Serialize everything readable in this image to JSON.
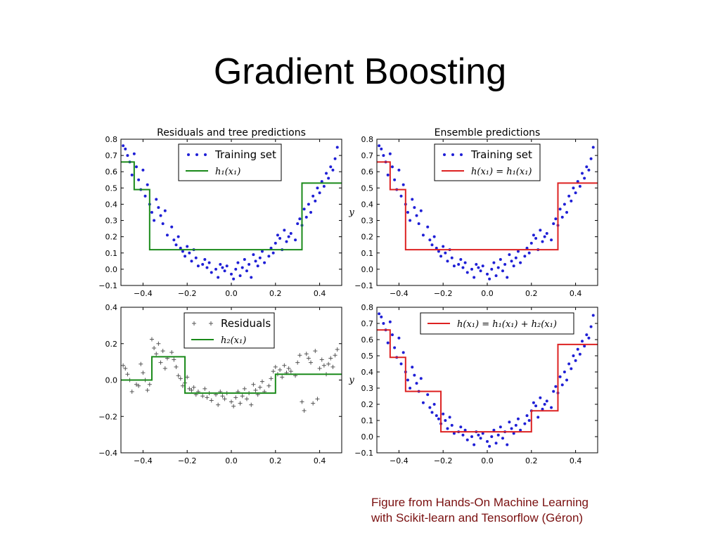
{
  "slide": {
    "title": "Gradient Boosting",
    "caption_line1": "Figure from Hands-On Machine Learning",
    "caption_line2": "with Scikit-learn and Tensorflow (Géron)"
  },
  "colors": {
    "training_points": "#1f1fd6",
    "residual_markers": "#555555",
    "tree_prediction": "#1a8a1a",
    "ensemble_prediction": "#dd2222"
  },
  "chart_data": [
    {
      "type": "scatter",
      "title": "Residuals and tree predictions",
      "xlabel": "",
      "ylabel": "",
      "xlim": [
        -0.5,
        0.5
      ],
      "ylim": [
        -0.1,
        0.8
      ],
      "xticks": [
        "−0.4",
        "−0.2",
        "0.0",
        "0.2",
        "0.4"
      ],
      "yticks": [
        "−0.1",
        "0.0",
        "0.1",
        "0.2",
        "0.3",
        "0.4",
        "0.5",
        "0.6",
        "0.7",
        "0.8"
      ],
      "legend_position": "top-center",
      "series": [
        {
          "name": "Training set",
          "kind": "points",
          "source": "training"
        },
        {
          "name": "h₁(x₁)",
          "kind": "step",
          "color": "#1a8a1a",
          "x": [
            -0.5,
            -0.44,
            -0.44,
            -0.37,
            -0.37,
            0.32,
            0.32,
            0.5
          ],
          "y": [
            0.66,
            0.66,
            0.49,
            0.49,
            0.12,
            0.12,
            0.53,
            0.53
          ]
        }
      ]
    },
    {
      "type": "scatter",
      "title": "Ensemble predictions",
      "xlabel": "",
      "ylabel": "y",
      "xlim": [
        -0.5,
        0.5
      ],
      "ylim": [
        -0.1,
        0.8
      ],
      "xticks": [
        "−0.4",
        "−0.2",
        "0.0",
        "0.2",
        "0.4"
      ],
      "yticks": [
        "−0.1",
        "0.0",
        "0.1",
        "0.2",
        "0.3",
        "0.4",
        "0.5",
        "0.6",
        "0.7",
        "0.8"
      ],
      "legend_position": "top-center",
      "series": [
        {
          "name": "Training set",
          "kind": "points",
          "source": "training"
        },
        {
          "name": "h(x₁) = h₁(x₁)",
          "kind": "step",
          "color": "#dd2222",
          "x": [
            -0.5,
            -0.44,
            -0.44,
            -0.37,
            -0.37,
            0.32,
            0.32,
            0.5
          ],
          "y": [
            0.66,
            0.66,
            0.49,
            0.49,
            0.12,
            0.12,
            0.53,
            0.53
          ]
        }
      ]
    },
    {
      "type": "scatter",
      "title": "",
      "xlabel": "",
      "ylabel": "",
      "xlim": [
        -0.5,
        0.5
      ],
      "ylim": [
        -0.5,
        0.5
      ],
      "xticks": [
        "−0.4",
        "−0.2",
        "0.0",
        "0.2",
        "0.4"
      ],
      "yticks": [
        "−0.4",
        "−0.2",
        "0.0",
        "0.2",
        "0.4"
      ],
      "legend_position": "top-center",
      "series": [
        {
          "name": "Residuals",
          "kind": "plus",
          "source": "residuals"
        },
        {
          "name": "h₂(x₁)",
          "kind": "step",
          "color": "#1a8a1a",
          "x": [
            -0.5,
            -0.36,
            -0.36,
            -0.21,
            -0.21,
            0.2,
            0.2,
            0.5
          ],
          "y": [
            0.0,
            0.0,
            0.16,
            0.16,
            -0.09,
            -0.09,
            0.04,
            0.04
          ]
        }
      ]
    },
    {
      "type": "scatter",
      "title": "",
      "xlabel": "",
      "ylabel": "y",
      "xlim": [
        -0.5,
        0.5
      ],
      "ylim": [
        -0.1,
        0.8
      ],
      "xticks": [
        "−0.4",
        "−0.2",
        "0.0",
        "0.2",
        "0.4"
      ],
      "yticks": [
        "−0.1",
        "0.0",
        "0.1",
        "0.2",
        "0.3",
        "0.4",
        "0.5",
        "0.6",
        "0.7",
        "0.8"
      ],
      "legend_position": "top-right",
      "series": [
        {
          "name": "Training set",
          "kind": "points",
          "source": "training",
          "in_legend": false
        },
        {
          "name": "h(x₁) = h₁(x₁) + h₂(x₁)",
          "kind": "step",
          "color": "#dd2222",
          "x": [
            -0.5,
            -0.44,
            -0.44,
            -0.37,
            -0.37,
            -0.21,
            -0.21,
            0.2,
            0.2,
            0.32,
            0.32,
            0.5
          ],
          "y": [
            0.66,
            0.66,
            0.49,
            0.49,
            0.28,
            0.28,
            0.03,
            0.03,
            0.16,
            0.16,
            0.57,
            0.57
          ]
        }
      ]
    }
  ],
  "training": {
    "x": [
      -0.49,
      -0.48,
      -0.47,
      -0.46,
      -0.45,
      -0.44,
      -0.43,
      -0.42,
      -0.41,
      -0.4,
      -0.39,
      -0.38,
      -0.37,
      -0.36,
      -0.35,
      -0.34,
      -0.33,
      -0.32,
      -0.31,
      -0.3,
      -0.29,
      -0.27,
      -0.26,
      -0.25,
      -0.24,
      -0.23,
      -0.22,
      -0.21,
      -0.2,
      -0.19,
      -0.18,
      -0.17,
      -0.16,
      -0.15,
      -0.13,
      -0.12,
      -0.11,
      -0.1,
      -0.09,
      -0.07,
      -0.06,
      -0.05,
      -0.04,
      -0.03,
      -0.02,
      0.0,
      0.01,
      0.02,
      0.03,
      0.04,
      0.05,
      0.06,
      0.07,
      0.08,
      0.09,
      0.1,
      0.11,
      0.12,
      0.13,
      0.14,
      0.15,
      0.17,
      0.18,
      0.19,
      0.2,
      0.21,
      0.22,
      0.23,
      0.24,
      0.25,
      0.26,
      0.27,
      0.29,
      0.3,
      0.31,
      0.32,
      0.33,
      0.34,
      0.35,
      0.36,
      0.37,
      0.38,
      0.39,
      0.4,
      0.41,
      0.42,
      0.43,
      0.44,
      0.45,
      0.46,
      0.47,
      0.48
    ],
    "y": [
      0.76,
      0.74,
      0.7,
      0.66,
      0.58,
      0.71,
      0.63,
      0.55,
      0.49,
      0.61,
      0.45,
      0.52,
      0.4,
      0.35,
      0.3,
      0.43,
      0.38,
      0.33,
      0.28,
      0.36,
      0.21,
      0.26,
      0.18,
      0.15,
      0.2,
      0.13,
      0.11,
      0.08,
      0.14,
      0.1,
      0.05,
      0.12,
      0.07,
      0.02,
      0.03,
      0.06,
      0.01,
      0.04,
      -0.02,
      0.0,
      -0.05,
      0.03,
      0.01,
      -0.01,
      0.02,
      -0.03,
      -0.06,
      0.0,
      0.04,
      -0.04,
      0.01,
      0.06,
      -0.01,
      0.03,
      -0.05,
      0.09,
      0.05,
      0.02,
      0.07,
      0.11,
      0.04,
      0.08,
      0.13,
      0.1,
      0.16,
      0.21,
      0.19,
      0.12,
      0.24,
      0.17,
      0.2,
      0.22,
      0.18,
      0.28,
      0.31,
      0.27,
      0.37,
      0.32,
      0.4,
      0.35,
      0.45,
      0.42,
      0.5,
      0.47,
      0.54,
      0.51,
      0.59,
      0.56,
      0.63,
      0.61,
      0.68,
      0.75
    ]
  },
  "residuals": {
    "x": [
      -0.49,
      -0.48,
      -0.47,
      -0.46,
      -0.45,
      -0.43,
      -0.42,
      -0.41,
      -0.4,
      -0.39,
      -0.38,
      -0.37,
      -0.36,
      -0.35,
      -0.34,
      -0.33,
      -0.32,
      -0.31,
      -0.3,
      -0.29,
      -0.27,
      -0.26,
      -0.25,
      -0.24,
      -0.23,
      -0.22,
      -0.21,
      -0.2,
      -0.19,
      -0.18,
      -0.17,
      -0.16,
      -0.15,
      -0.13,
      -0.12,
      -0.11,
      -0.1,
      -0.09,
      -0.07,
      -0.06,
      -0.05,
      -0.04,
      -0.03,
      -0.02,
      0.0,
      0.01,
      0.02,
      0.03,
      0.04,
      0.05,
      0.06,
      0.07,
      0.08,
      0.09,
      0.1,
      0.11,
      0.12,
      0.13,
      0.14,
      0.15,
      0.17,
      0.18,
      0.19,
      0.2,
      0.21,
      0.22,
      0.23,
      0.24,
      0.25,
      0.26,
      0.27,
      0.29,
      0.3,
      0.31,
      0.32,
      0.33,
      0.34,
      0.35,
      0.36,
      0.37,
      0.38,
      0.39,
      0.4,
      0.41,
      0.42,
      0.43,
      0.44,
      0.45,
      0.46,
      0.47,
      0.48
    ],
    "y": [
      0.1,
      0.08,
      0.04,
      0.0,
      -0.08,
      -0.03,
      -0.04,
      0.11,
      0.05,
      0.0,
      -0.07,
      -0.03,
      0.28,
      0.22,
      0.18,
      0.25,
      0.12,
      0.2,
      0.08,
      0.15,
      0.19,
      0.14,
      0.09,
      0.03,
      0.01,
      -0.04,
      -0.02,
      0.02,
      -0.06,
      -0.07,
      -0.05,
      -0.1,
      -0.08,
      -0.11,
      -0.06,
      -0.12,
      -0.09,
      -0.14,
      -0.1,
      -0.17,
      -0.08,
      -0.11,
      -0.13,
      -0.09,
      -0.15,
      -0.18,
      -0.12,
      -0.08,
      -0.16,
      -0.11,
      -0.06,
      -0.13,
      -0.09,
      -0.17,
      -0.03,
      -0.07,
      -0.1,
      -0.05,
      -0.01,
      -0.08,
      -0.04,
      0.01,
      0.06,
      0.09,
      0.04,
      0.07,
      0.02,
      0.1,
      0.05,
      0.08,
      0.06,
      0.03,
      0.12,
      0.17,
      -0.15,
      -0.21,
      0.18,
      0.15,
      0.12,
      -0.16,
      0.2,
      -0.13,
      0.08,
      0.14,
      0.1,
      0.04,
      0.11,
      0.15,
      0.09,
      0.17,
      0.21
    ]
  }
}
